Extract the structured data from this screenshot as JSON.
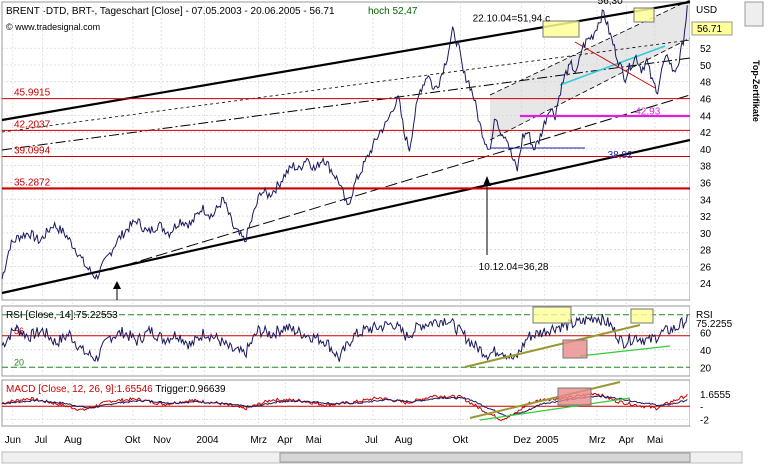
{
  "header": {
    "title": "BRENT ·DTD, BRT-, Tageschart [Close] - 07.05.2003 - 20.06.2005 - 56.71",
    "high_label": "hoch 52,47",
    "source": "© www.tradesignal.com",
    "unit": "USD",
    "side_label": "Top-Zertifikate"
  },
  "colors": {
    "price": "#1a1a5e",
    "channel": "#000000",
    "support": "#cc0000",
    "highlight_box": "#ffff99",
    "fill_box": "#e88a8a",
    "cyan": "#33ccdd",
    "magenta": "#dd22dd",
    "olive": "#999933",
    "green": "#33cc33",
    "macd_line": "#cc0000"
  },
  "chart_data": [
    {
      "type": "line",
      "name": "price",
      "x_unit": "trading_day_index",
      "ylabel": "USD",
      "ylim": [
        22,
        57.5
      ],
      "yticks": [
        24,
        26,
        28,
        30,
        32,
        34,
        36,
        38,
        40,
        42,
        44,
        46,
        48,
        50,
        52
      ],
      "current_value_label": "56.71",
      "x_labels": [
        {
          "label": "Jun",
          "day": 8
        },
        {
          "label": "Jul",
          "day": 30
        },
        {
          "label": "Aug",
          "day": 52
        },
        {
          "label": "Okt",
          "day": 97
        },
        {
          "label": "Nov",
          "day": 118
        },
        {
          "label": "2004",
          "day": 150
        },
        {
          "label": "Mrz",
          "day": 190
        },
        {
          "label": "Apr",
          "day": 210
        },
        {
          "label": "Mai",
          "day": 231
        },
        {
          "label": "Jul",
          "day": 275
        },
        {
          "label": "Aug",
          "day": 297
        },
        {
          "label": "Okt",
          "day": 340
        },
        {
          "label": "Dez",
          "day": 385
        },
        {
          "label": "2005",
          "day": 402
        },
        {
          "label": "Mrz",
          "day": 441
        },
        {
          "label": "Apr",
          "day": 463
        },
        {
          "label": "Mai",
          "day": 484
        }
      ],
      "anchors": [
        [
          0,
          24.5
        ],
        [
          6,
          28.5
        ],
        [
          12,
          29.5
        ],
        [
          20,
          30
        ],
        [
          28,
          29
        ],
        [
          38,
          31
        ],
        [
          46,
          30
        ],
        [
          55,
          28
        ],
        [
          62,
          26
        ],
        [
          70,
          24.7
        ],
        [
          78,
          27
        ],
        [
          85,
          29
        ],
        [
          93,
          30.5
        ],
        [
          100,
          31.5
        ],
        [
          108,
          30
        ],
        [
          116,
          31
        ],
        [
          124,
          30
        ],
        [
          132,
          31.5
        ],
        [
          140,
          31
        ],
        [
          148,
          33
        ],
        [
          156,
          32
        ],
        [
          164,
          34
        ],
        [
          172,
          30.5
        ],
        [
          180,
          29
        ],
        [
          186,
          32
        ],
        [
          192,
          35
        ],
        [
          198,
          34.5
        ],
        [
          204,
          35.5
        ],
        [
          210,
          37
        ],
        [
          216,
          38
        ],
        [
          220,
          37.5
        ],
        [
          226,
          39
        ],
        [
          232,
          37.5
        ],
        [
          238,
          39
        ],
        [
          244,
          37.5
        ],
        [
          250,
          36
        ],
        [
          256,
          33
        ],
        [
          262,
          36
        ],
        [
          268,
          38
        ],
        [
          274,
          40
        ],
        [
          280,
          42
        ],
        [
          285,
          43
        ],
        [
          290,
          45
        ],
        [
          294,
          46
        ],
        [
          298,
          42
        ],
        [
          302,
          40
        ],
        [
          306,
          44
        ],
        [
          310,
          47
        ],
        [
          316,
          49
        ],
        [
          320,
          47
        ],
        [
          324,
          48
        ],
        [
          330,
          51
        ],
        [
          334,
          54
        ],
        [
          338,
          52.5
        ],
        [
          342,
          49
        ],
        [
          346,
          48
        ],
        [
          350,
          46
        ],
        [
          354,
          43
        ],
        [
          358,
          41
        ],
        [
          362,
          40
        ],
        [
          366,
          44
        ],
        [
          370,
          42
        ],
        [
          374,
          41.5
        ],
        [
          378,
          39
        ],
        [
          382,
          37.5
        ],
        [
          386,
          41.5
        ],
        [
          390,
          42
        ],
        [
          394,
          40
        ],
        [
          398,
          41
        ],
        [
          402,
          43
        ],
        [
          406,
          45
        ],
        [
          410,
          44
        ],
        [
          414,
          47
        ],
        [
          418,
          49
        ],
        [
          422,
          50
        ],
        [
          426,
          49
        ],
        [
          430,
          52
        ],
        [
          434,
          53
        ],
        [
          438,
          53.5
        ],
        [
          442,
          55
        ],
        [
          446,
          56.3
        ],
        [
          450,
          54
        ],
        [
          454,
          52
        ],
        [
          458,
          50
        ],
        [
          462,
          48.5
        ],
        [
          466,
          50
        ],
        [
          470,
          51
        ],
        [
          474,
          49.5
        ],
        [
          478,
          50.5
        ],
        [
          482,
          48
        ],
        [
          486,
          47
        ],
        [
          490,
          50
        ],
        [
          494,
          51
        ],
        [
          498,
          49
        ],
        [
          502,
          50.5
        ],
        [
          505,
          53
        ],
        [
          508,
          56.71
        ]
      ],
      "annotations": [
        {
          "text": "56,30",
          "day": 446,
          "y": 56.3
        },
        {
          "text": "22.10.04=51,94 c",
          "day": 334,
          "y": 54
        },
        {
          "text": "10.12.04=36,28",
          "day": 383,
          "y": 36.28
        },
        {
          "text": "42,93",
          "day": 462,
          "y": 42.93
        },
        {
          "text": "38,92",
          "day": 440,
          "y": 38.92
        }
      ],
      "support_levels": [
        {
          "label": "45.9915",
          "value": 45.9915
        },
        {
          "label": "42.2037",
          "value": 42.2037
        },
        {
          "label": "39.0994",
          "value": 39.0994
        },
        {
          "label": "35.2872",
          "value": 35.2872
        }
      ]
    },
    {
      "type": "line",
      "name": "RSI [Close, 14]",
      "legend": "RSI [Close, 14]:75.22553",
      "axis_label": "RSI",
      "current_value_label": "75.2255",
      "ylim": [
        10,
        90
      ],
      "yticks": [
        20,
        40,
        60
      ],
      "levels": [
        {
          "label": "56",
          "value": 56
        },
        {
          "label": "20",
          "value": 20
        }
      ],
      "anchors": [
        [
          0,
          45
        ],
        [
          10,
          65
        ],
        [
          20,
          55
        ],
        [
          30,
          62
        ],
        [
          40,
          48
        ],
        [
          50,
          58
        ],
        [
          60,
          38
        ],
        [
          70,
          30
        ],
        [
          80,
          55
        ],
        [
          90,
          60
        ],
        [
          100,
          50
        ],
        [
          110,
          62
        ],
        [
          120,
          52
        ],
        [
          130,
          58
        ],
        [
          140,
          45
        ],
        [
          150,
          60
        ],
        [
          160,
          52
        ],
        [
          170,
          40
        ],
        [
          180,
          35
        ],
        [
          190,
          62
        ],
        [
          200,
          58
        ],
        [
          210,
          66
        ],
        [
          220,
          60
        ],
        [
          230,
          55
        ],
        [
          240,
          50
        ],
        [
          250,
          30
        ],
        [
          260,
          55
        ],
        [
          270,
          63
        ],
        [
          280,
          66
        ],
        [
          290,
          70
        ],
        [
          300,
          55
        ],
        [
          310,
          68
        ],
        [
          320,
          72
        ],
        [
          330,
          75
        ],
        [
          340,
          60
        ],
        [
          350,
          45
        ],
        [
          360,
          35
        ],
        [
          370,
          40
        ],
        [
          380,
          28
        ],
        [
          390,
          55
        ],
        [
          400,
          60
        ],
        [
          410,
          66
        ],
        [
          420,
          68
        ],
        [
          430,
          72
        ],
        [
          440,
          78
        ],
        [
          450,
          70
        ],
        [
          460,
          48
        ],
        [
          470,
          55
        ],
        [
          480,
          50
        ],
        [
          490,
          60
        ],
        [
          500,
          65
        ],
        [
          508,
          75.23
        ]
      ]
    },
    {
      "type": "line",
      "name": "MACD [Close, 12, 26, 9]",
      "legend": "MACD [Close, 12, 26, 9]:1.65546",
      "trigger_label": "Trigger:0.96639",
      "current_value_label": "1.6555",
      "ylim": [
        -3,
        4
      ],
      "yticks": [
        -2
      ],
      "zero_tick": "-",
      "series": [
        {
          "name": "MACD",
          "anchors": [
            [
              0,
              0.5
            ],
            [
              20,
              1.2
            ],
            [
              40,
              0.4
            ],
            [
              60,
              -0.6
            ],
            [
              80,
              0.8
            ],
            [
              100,
              1.1
            ],
            [
              120,
              0.3
            ],
            [
              140,
              0.9
            ],
            [
              160,
              0.5
            ],
            [
              180,
              -0.4
            ],
            [
              200,
              1
            ],
            [
              220,
              0.9
            ],
            [
              240,
              0.2
            ],
            [
              260,
              0.6
            ],
            [
              280,
              1.3
            ],
            [
              300,
              0.5
            ],
            [
              320,
              1.6
            ],
            [
              340,
              1.4
            ],
            [
              360,
              -1
            ],
            [
              370,
              -2
            ],
            [
              380,
              -1.2
            ],
            [
              390,
              0.4
            ],
            [
              400,
              1
            ],
            [
              420,
              1.3
            ],
            [
              440,
              2
            ],
            [
              455,
              0.8
            ],
            [
              470,
              0.2
            ],
            [
              485,
              -0.3
            ],
            [
              495,
              0.6
            ],
            [
              508,
              1.66
            ]
          ]
        },
        {
          "name": "Trigger",
          "anchors": [
            [
              0,
              0.4
            ],
            [
              25,
              0.9
            ],
            [
              45,
              0.5
            ],
            [
              65,
              -0.3
            ],
            [
              85,
              0.5
            ],
            [
              105,
              0.9
            ],
            [
              125,
              0.5
            ],
            [
              145,
              0.7
            ],
            [
              165,
              0.4
            ],
            [
              185,
              -0.1
            ],
            [
              205,
              0.7
            ],
            [
              225,
              0.8
            ],
            [
              245,
              0.4
            ],
            [
              265,
              0.5
            ],
            [
              285,
              1
            ],
            [
              305,
              0.7
            ],
            [
              325,
              1.3
            ],
            [
              345,
              1.2
            ],
            [
              362,
              -0.4
            ],
            [
              375,
              -1.5
            ],
            [
              388,
              -0.8
            ],
            [
              400,
              0.4
            ],
            [
              420,
              1
            ],
            [
              442,
              1.6
            ],
            [
              460,
              1.1
            ],
            [
              475,
              0.5
            ],
            [
              490,
              0.1
            ],
            [
              500,
              0.5
            ],
            [
              508,
              0.97
            ]
          ]
        }
      ]
    }
  ]
}
